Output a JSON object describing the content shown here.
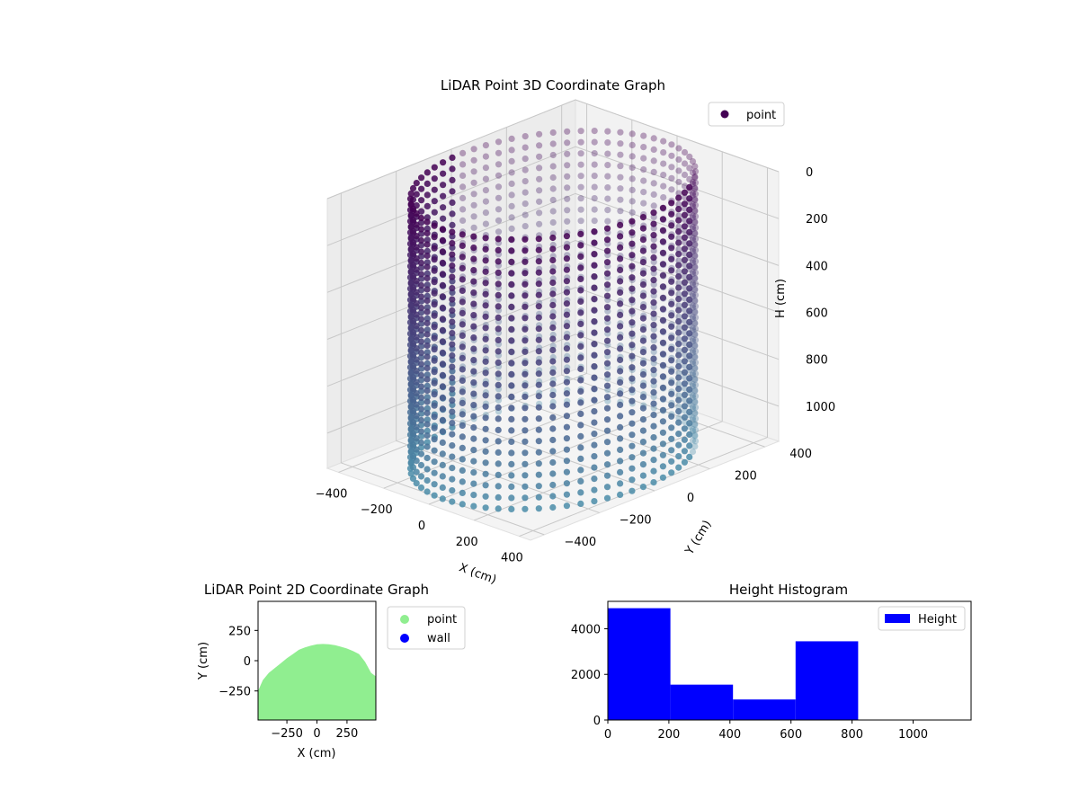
{
  "chart_data": [
    {
      "type": "scatter",
      "title": "LiDAR Point 3D Coordinate Graph",
      "xlabel": "X (cm)",
      "ylabel": "Y (cm)",
      "zlabel": "H (cm)",
      "x_ticks": [
        -400,
        -200,
        0,
        200,
        400
      ],
      "y_ticks": [
        -400,
        -200,
        0,
        200,
        400
      ],
      "z_ticks": [
        0,
        200,
        400,
        600,
        800,
        1000
      ],
      "xlim": [
        -450,
        450
      ],
      "ylim": [
        -450,
        450
      ],
      "zlim": [
        1150,
        0
      ],
      "z_inverted": true,
      "legend": [
        "point"
      ],
      "legend_location": "upper-right",
      "colormap": "viridis",
      "grid": true,
      "shape": "cylinder",
      "cylinder_radius": 400,
      "height_range": [
        0,
        1150
      ],
      "center": [
        0,
        0
      ],
      "colors": {
        "top": "#440154",
        "bottom": "#4a8ca8"
      }
    },
    {
      "type": "scatter",
      "title": "LiDAR Point 2D Coordinate Graph",
      "xlabel": "X (cm)",
      "ylabel": "Y (cm)",
      "x_ticks": [
        -250,
        0,
        250
      ],
      "x_tick_labels": [
        "−250",
        "0",
        "250"
      ],
      "y_ticks": [
        250,
        0,
        -250
      ],
      "y_tick_labels": [
        "250",
        "0",
        "−250"
      ],
      "xlim": [
        -490,
        490
      ],
      "ylim": [
        -490,
        490
      ],
      "series": [
        {
          "name": "point",
          "color": "#90ee90"
        },
        {
          "name": "wall",
          "color": "#0000ff"
        }
      ],
      "region_upper_boundary": [
        [
          -490,
          -250
        ],
        [
          -450,
          -160
        ],
        [
          -400,
          -100
        ],
        [
          -350,
          -60
        ],
        [
          -300,
          -20
        ],
        [
          -250,
          20
        ],
        [
          -200,
          55
        ],
        [
          -150,
          90
        ],
        [
          -100,
          110
        ],
        [
          -50,
          125
        ],
        [
          0,
          135
        ],
        [
          50,
          138
        ],
        [
          100,
          135
        ],
        [
          150,
          128
        ],
        [
          200,
          115
        ],
        [
          250,
          100
        ],
        [
          300,
          80
        ],
        [
          350,
          55
        ],
        [
          400,
          -10
        ],
        [
          450,
          -100
        ],
        [
          490,
          -130
        ]
      ],
      "legend_location": "outside-right"
    },
    {
      "type": "bar",
      "title": "Height Histogram",
      "bin_edges": [
        0,
        205,
        410,
        615,
        820,
        1025
      ],
      "values": [
        4900,
        1550,
        900,
        3450,
        0
      ],
      "series_name": "Height",
      "color": "#0000ff",
      "xlim": [
        0,
        1190
      ],
      "ylim": [
        0,
        5200
      ],
      "x_ticks": [
        0,
        200,
        400,
        600,
        800,
        1000
      ],
      "y_ticks": [
        0,
        2000,
        4000
      ],
      "legend_location": "upper-right"
    }
  ]
}
